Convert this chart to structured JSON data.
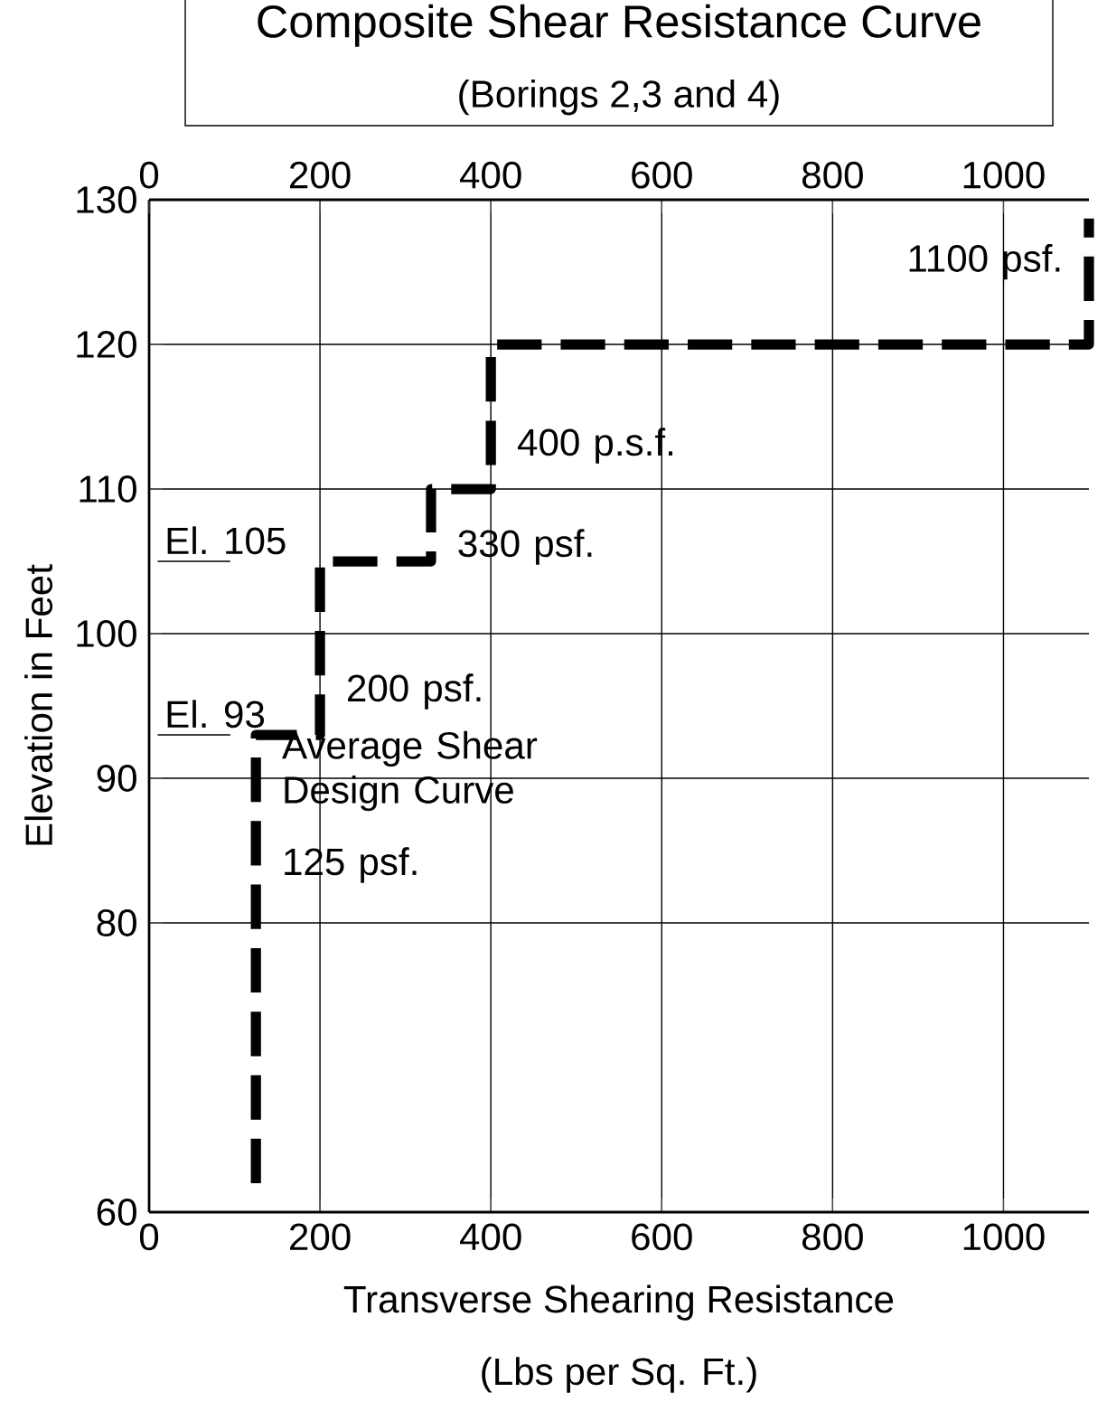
{
  "chart_data": {
    "type": "line",
    "title": "Composite Shear Resistance Curve",
    "subtitle": "(Borings 2,3 and 4)",
    "xlabel": "Transverse Shearing Resistance",
    "ylabel": "Elevation in Feet",
    "x": [
      125,
      125,
      200,
      200,
      330,
      330,
      400,
      400,
      1100,
      1100
    ],
    "series": [
      {
        "color": "#000000",
        "values": [
          62,
          93,
          93,
          105,
          105,
          110,
          110,
          120,
          120,
          128.7
        ]
      }
    ],
    "line_style": "dashed",
    "grid": true,
    "xlim": [
      0,
      1100
    ],
    "xticks": [
      0,
      200,
      400,
      600,
      800,
      1000
    ],
    "x2lim": [
      0,
      1100
    ],
    "x2ticks": [
      0,
      200,
      400,
      600,
      800,
      1000
    ],
    "ylim": [
      60,
      130
    ],
    "yticks": [
      60,
      80,
      90,
      100,
      110,
      120,
      130
    ],
    "annotations": [
      {
        "text": "1100 psf.",
        "x": 1100,
        "y": 124
      },
      {
        "text": "400 p.s.f.",
        "x": 400,
        "y": 113
      },
      {
        "text": "330 psf.",
        "x": 330,
        "y": 106
      },
      {
        "text": "200 psf.",
        "x": 200,
        "y": 96
      },
      {
        "text": "125 psf.",
        "x": 125,
        "y": 84
      },
      {
        "text": "Average Shear Design Curve",
        "x": 125,
        "y": 90.5
      },
      "(Lbs per Sq. Ft.)"
    ],
    "ref_lines": [
      {
        "axis": "y",
        "value": 105,
        "label": "El. 105"
      },
      {
        "axis": "y",
        "value": 93,
        "label": "El. 93"
      }
    ]
  }
}
